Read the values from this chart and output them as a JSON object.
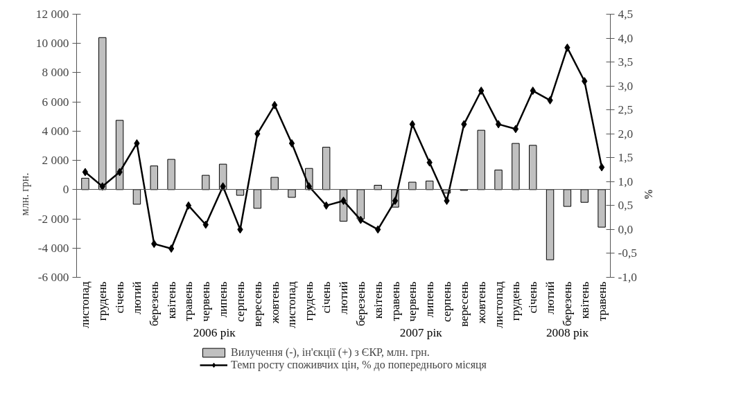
{
  "chart_data": {
    "type": "bar",
    "categories": [
      "листопад",
      "грудень",
      "січень",
      "лютий",
      "березень",
      "квітень",
      "травень",
      "червень",
      "липень",
      "серпень",
      "вересень",
      "жовтень",
      "листопад",
      "грудень",
      "січень",
      "лютий",
      "березень",
      "квітень",
      "травень",
      "червень",
      "липень",
      "серпень",
      "вересень",
      "жовтень",
      "листопад",
      "грудень",
      "січень",
      "лютий",
      "березень",
      "квітень",
      "травень"
    ],
    "series": [
      {
        "name": "Вилучення (-), ін'єкції (+) з ЄКР, млн. грн.",
        "color": "#c0c0c0",
        "values": [
          780,
          10400,
          4740,
          -1000,
          1620,
          2070,
          null,
          980,
          1740,
          -390,
          -1280,
          840,
          -530,
          1450,
          2900,
          -2160,
          -2000,
          300,
          -1200,
          510,
          590,
          -240,
          -50,
          4060,
          1340,
          3160,
          3030,
          -4800,
          -1150,
          -870,
          -2570
        ]
      },
      {
        "name": "Темп росту споживчих цін, % до попереднього місяця",
        "type": "line",
        "axis": "y2",
        "color": "#000000",
        "marker": "diamond",
        "values": [
          1.2,
          0.9,
          1.2,
          1.8,
          -0.3,
          -0.4,
          0.5,
          0.1,
          0.9,
          0.0,
          2.0,
          2.6,
          1.8,
          0.9,
          0.5,
          0.6,
          0.2,
          0.0,
          0.6,
          2.2,
          1.4,
          0.6,
          2.2,
          2.9,
          2.2,
          2.1,
          2.9,
          2.7,
          3.8,
          3.1,
          1.3
        ]
      }
    ],
    "ylim": [
      -6000,
      12000
    ],
    "yticks": [
      {
        "value": -6000,
        "label": "-6 000"
      },
      {
        "value": -4000,
        "label": "-4 000"
      },
      {
        "value": -2000,
        "label": "-2 000"
      },
      0,
      {
        "value": 2000,
        "label": "2 000"
      },
      {
        "value": 4000,
        "label": "4 000"
      },
      {
        "value": 6000,
        "label": "6 000"
      },
      {
        "value": 8000,
        "label": "8 000"
      },
      {
        "value": 10000,
        "label": "10 000"
      },
      {
        "value": 12000,
        "label": "12 000"
      }
    ],
    "y2lim": [
      -1.0,
      4.5
    ],
    "y2ticks": [
      {
        "value": -1.0,
        "label": "-1,0"
      },
      {
        "value": -0.5,
        "label": "-0,5"
      },
      {
        "value": 0.0,
        "label": "0,0"
      },
      {
        "value": 0.5,
        "label": "0,5"
      },
      {
        "value": 1.0,
        "label": "1,0"
      },
      {
        "value": 1.5,
        "label": "1,5"
      },
      {
        "value": 2.0,
        "label": "2,0"
      },
      {
        "value": 2.5,
        "label": "2,5"
      },
      {
        "value": 3.0,
        "label": "3,0"
      },
      {
        "value": 3.5,
        "label": "3,5"
      },
      {
        "value": 4.0,
        "label": "4,0"
      },
      {
        "value": 4.5,
        "label": "4,5"
      }
    ],
    "ylabel": "млн. грн.",
    "y2label": "%",
    "legend": "bottom",
    "annotations": [
      "2006 рік",
      "2007 рік",
      "2008 рік"
    ]
  }
}
